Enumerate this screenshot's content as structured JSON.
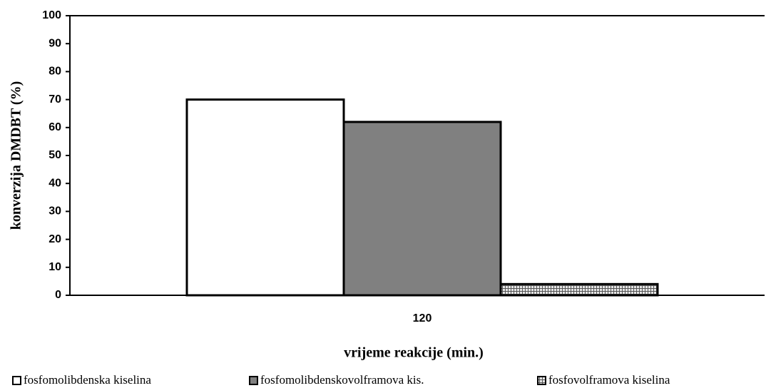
{
  "chart_data": {
    "type": "bar",
    "categories": [
      "120"
    ],
    "series": [
      {
        "name": "fosfomolibdenska kiselina",
        "values": [
          70
        ],
        "color": "#ffffff",
        "pattern": "solid"
      },
      {
        "name": "fosfomolibdenskovolframova kis.",
        "values": [
          62
        ],
        "color": "#808080",
        "pattern": "solid"
      },
      {
        "name": "fosfovolframova kiselina",
        "values": [
          4
        ],
        "color": "#bdbdbd",
        "pattern": "grid"
      }
    ],
    "xlabel": "vrijeme reakcije (min.)",
    "ylabel": "konverzija DMDBT (%)",
    "ylim": [
      0,
      100
    ],
    "yticks": [
      "0",
      "10",
      "20",
      "30",
      "40",
      "50",
      "60",
      "70",
      "80",
      "90",
      "100"
    ],
    "grid": false,
    "legend_position": "bottom"
  }
}
